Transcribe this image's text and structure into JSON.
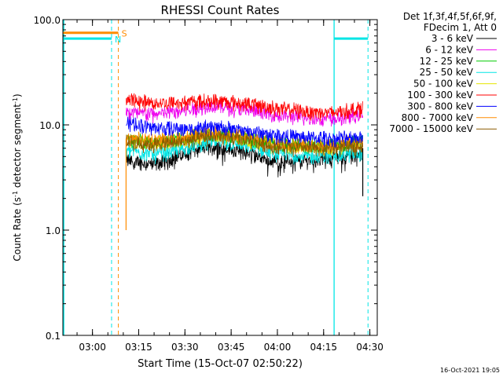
{
  "chart_data": {
    "type": "line",
    "title": "RHESSI Count Rates",
    "xlabel": "Start Time (15-Oct-07 02:50:22)",
    "ylabel_main": "Count Rate (s",
    "ylabel_sup": "-1",
    "ylabel_tail": " detector segment",
    "ylabel_sup2": "-1",
    "ylabel_end": ")",
    "yscale": "log",
    "ylim": [
      0.1,
      100
    ],
    "y_ticks": [
      {
        "value": 0.1,
        "label": "0.1"
      },
      {
        "value": 1,
        "label": "1.0"
      },
      {
        "value": 10,
        "label": "10.0"
      },
      {
        "value": 100,
        "label": "100.0"
      }
    ],
    "x_units": "minutes after 02:50:22",
    "xlim": [
      0,
      102
    ],
    "x_ticks": [
      {
        "value": 9.6,
        "label": "03:00"
      },
      {
        "value": 24.6,
        "label": "03:15"
      },
      {
        "value": 39.6,
        "label": "03:30"
      },
      {
        "value": 54.6,
        "label": "03:45"
      },
      {
        "value": 69.6,
        "label": "04:00"
      },
      {
        "value": 84.6,
        "label": "04:15"
      },
      {
        "value": 99.6,
        "label": "04:30"
      }
    ],
    "legend_header": [
      "Det 1f,3f,4f,5f,6f,9f,",
      "FDecim 1, Att 0"
    ],
    "legend_placement": "right",
    "data_start": 20.5,
    "data_end": 97.3,
    "series": [
      {
        "name": "3 - 6 keV",
        "color": "#000000",
        "levels": [
          4.6,
          4.2,
          5.4,
          6.4,
          5.6,
          4.5,
          4.6,
          4.9,
          5.2
        ]
      },
      {
        "name": "6 - 12 keV",
        "color": "#ee00ee",
        "levels": [
          13.2,
          12.6,
          13.8,
          15.2,
          14.0,
          12.4,
          11.6,
          11.4,
          12.4
        ]
      },
      {
        "name": "12 - 25 keV",
        "color": "#00cc00",
        "levels": [
          7.2,
          6.9,
          7.5,
          8.4,
          7.6,
          6.6,
          6.4,
          6.4,
          6.8
        ]
      },
      {
        "name": "25 - 50 keV",
        "color": "#00e5e5",
        "levels": [
          5.8,
          5.2,
          6.0,
          7.0,
          6.3,
          5.4,
          5.0,
          5.1,
          5.4
        ]
      },
      {
        "name": "50 - 100 keV",
        "color": "#e5e500",
        "levels": [
          7.0,
          6.7,
          7.2,
          8.0,
          7.3,
          6.4,
          6.2,
          6.2,
          6.6
        ]
      },
      {
        "name": "100 - 300 keV",
        "color": "#ff0000",
        "levels": [
          17.5,
          16.0,
          16.5,
          17.0,
          16.0,
          14.5,
          13.5,
          13.0,
          14.5
        ]
      },
      {
        "name": "300 - 800 keV",
        "color": "#0000ff",
        "levels": [
          10.5,
          9.4,
          9.1,
          9.6,
          8.8,
          8.0,
          7.6,
          7.4,
          7.8
        ]
      },
      {
        "name": "800 - 7000 keV",
        "color": "#ff8c00",
        "levels": [
          7.4,
          7.1,
          7.6,
          8.4,
          7.7,
          6.8,
          6.5,
          6.5,
          6.9
        ]
      },
      {
        "name": "7000 - 15000 keV",
        "color": "#8b5a00",
        "levels": [
          6.8,
          6.5,
          7.0,
          7.8,
          7.2,
          6.2,
          6.0,
          6.0,
          6.4
        ]
      }
    ],
    "markers": [
      {
        "label": "S",
        "color": "#ff8c00",
        "x0": 0,
        "x1": 18.0,
        "y": 75,
        "vline_x": 18.0,
        "vline_style": "dashed"
      },
      {
        "label": "N",
        "color": "#00e5e5",
        "x0": 0,
        "x1": 15.8,
        "y": 66,
        "vline_x": 15.8,
        "vline_style": "dashed"
      },
      {
        "label": "",
        "color": "#00e5e5",
        "x0": 88.0,
        "x1": 99.0,
        "y": 66,
        "vline_x": 99.0,
        "vline_style": "dashed"
      }
    ],
    "cyan_solid_vlines": [
      0.3,
      88.0
    ],
    "footer_stamp": "16-Oct-2021 19:05"
  }
}
